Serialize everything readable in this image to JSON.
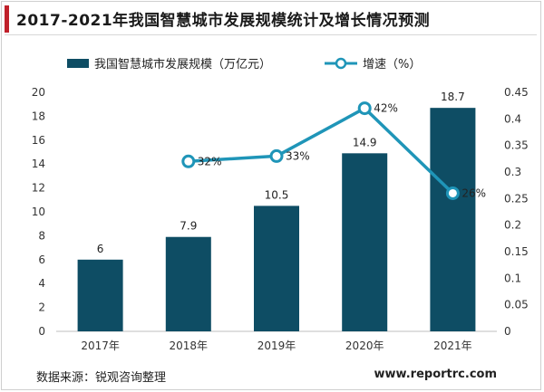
{
  "title": "2017-2021年我国智慧城市发展规模统计及增长情况预测",
  "source": "数据来源：锐观咨询整理",
  "website": "www.reportrc.com",
  "colors": {
    "accent": "#c0202a",
    "bar": "#0e4d64",
    "line": "#1f95b8"
  },
  "chart_data": {
    "type": "bar",
    "categories": [
      "2017年",
      "2018年",
      "2019年",
      "2020年",
      "2021年"
    ],
    "series": [
      {
        "name": "我国智慧城市发展规模（万亿元）",
        "type": "bar",
        "axis": "left",
        "values": [
          6,
          7.9,
          10.5,
          14.9,
          18.7
        ],
        "labels": [
          "6",
          "7.9",
          "10.5",
          "14.9",
          "18.7"
        ]
      },
      {
        "name": "增速（%）",
        "type": "line",
        "axis": "right",
        "values": [
          null,
          0.32,
          0.33,
          0.42,
          0.26
        ],
        "labels": [
          "",
          "32%",
          "33%",
          "42%",
          "26%"
        ]
      }
    ],
    "ylim_left": [
      0,
      20
    ],
    "yticks_left": [
      "0",
      "2",
      "4",
      "6",
      "8",
      "10",
      "12",
      "14",
      "16",
      "18",
      "20"
    ],
    "ylim_right": [
      0,
      0.45
    ],
    "yticks_right": [
      "0",
      "0.05",
      "0.1",
      "0.15",
      "0.2",
      "0.25",
      "0.3",
      "0.35",
      "0.4",
      "0.45"
    ],
    "legend_position": "top",
    "grid": false
  }
}
